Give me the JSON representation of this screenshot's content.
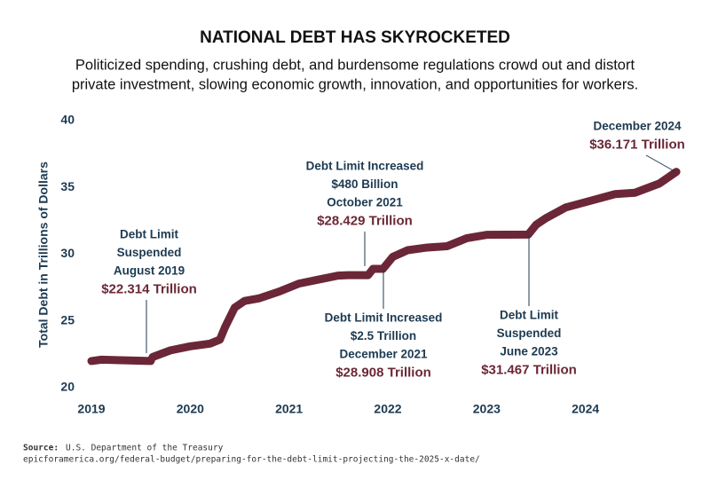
{
  "chart_data": {
    "type": "line",
    "title": "NATIONAL DEBT HAS SKYROCKETED",
    "subtitle": [
      "Politicized spending, crushing debt, and burdensome regulations crowd out and distort",
      "private investment, slowing economic growth, innovation, and opportunities for workers."
    ],
    "y_label": "Total Debt in Trillions of Dollars",
    "x": [
      2019.0,
      2019.1,
      2019.6,
      2019.62,
      2019.8,
      2020.0,
      2020.2,
      2020.3,
      2020.35,
      2020.45,
      2020.55,
      2020.7,
      2020.9,
      2021.1,
      2021.3,
      2021.5,
      2021.6,
      2021.8,
      2021.85,
      2021.95,
      2022.05,
      2022.2,
      2022.4,
      2022.6,
      2022.8,
      2023.0,
      2023.42,
      2023.5,
      2023.6,
      2023.8,
      2024.0,
      2024.3,
      2024.5,
      2024.75,
      2024.92
    ],
    "series": [
      {
        "name": "Total Debt",
        "color": "#6b2737",
        "values": [
          22.0,
          22.1,
          22.0,
          22.3,
          22.8,
          23.1,
          23.3,
          23.6,
          24.5,
          26.0,
          26.5,
          26.7,
          27.2,
          27.8,
          28.1,
          28.4,
          28.43,
          28.43,
          28.9,
          28.9,
          29.8,
          30.3,
          30.5,
          30.6,
          31.2,
          31.45,
          31.467,
          32.2,
          32.7,
          33.5,
          33.9,
          34.5,
          34.6,
          35.3,
          36.171
        ]
      }
    ],
    "xlim": [
      2019,
      2025
    ],
    "xticks": [
      2019,
      2020,
      2021,
      2022,
      2023,
      2024
    ],
    "ylim": [
      20,
      40
    ],
    "yticks": [
      20,
      25,
      30,
      35,
      40
    ],
    "annotations": [
      {
        "lines": [
          "Debt Limit",
          "Suspended",
          "August 2019"
        ],
        "value": "$22.314 Trillion"
      },
      {
        "lines": [
          "Debt Limit Increased",
          "$480 Billion",
          "October 2021"
        ],
        "value": "$28.429 Trillion"
      },
      {
        "lines": [
          "Debt Limit Increased",
          "$2.5 Trillion",
          "December 2021"
        ],
        "value": "$28.908 Trillion"
      },
      {
        "lines": [
          "Debt Limit",
          "Suspended",
          "June 2023"
        ],
        "value": "$31.467 Trillion"
      },
      {
        "lines": [
          "December 2024"
        ],
        "value": "$36.171 Trillion"
      }
    ],
    "source_label": "Source:",
    "source": "U.S. Department of the Treasury",
    "url": "epicforamerica.org/federal-budget/preparing-for-the-debt-limit-projecting-the-2025-x-date/"
  }
}
